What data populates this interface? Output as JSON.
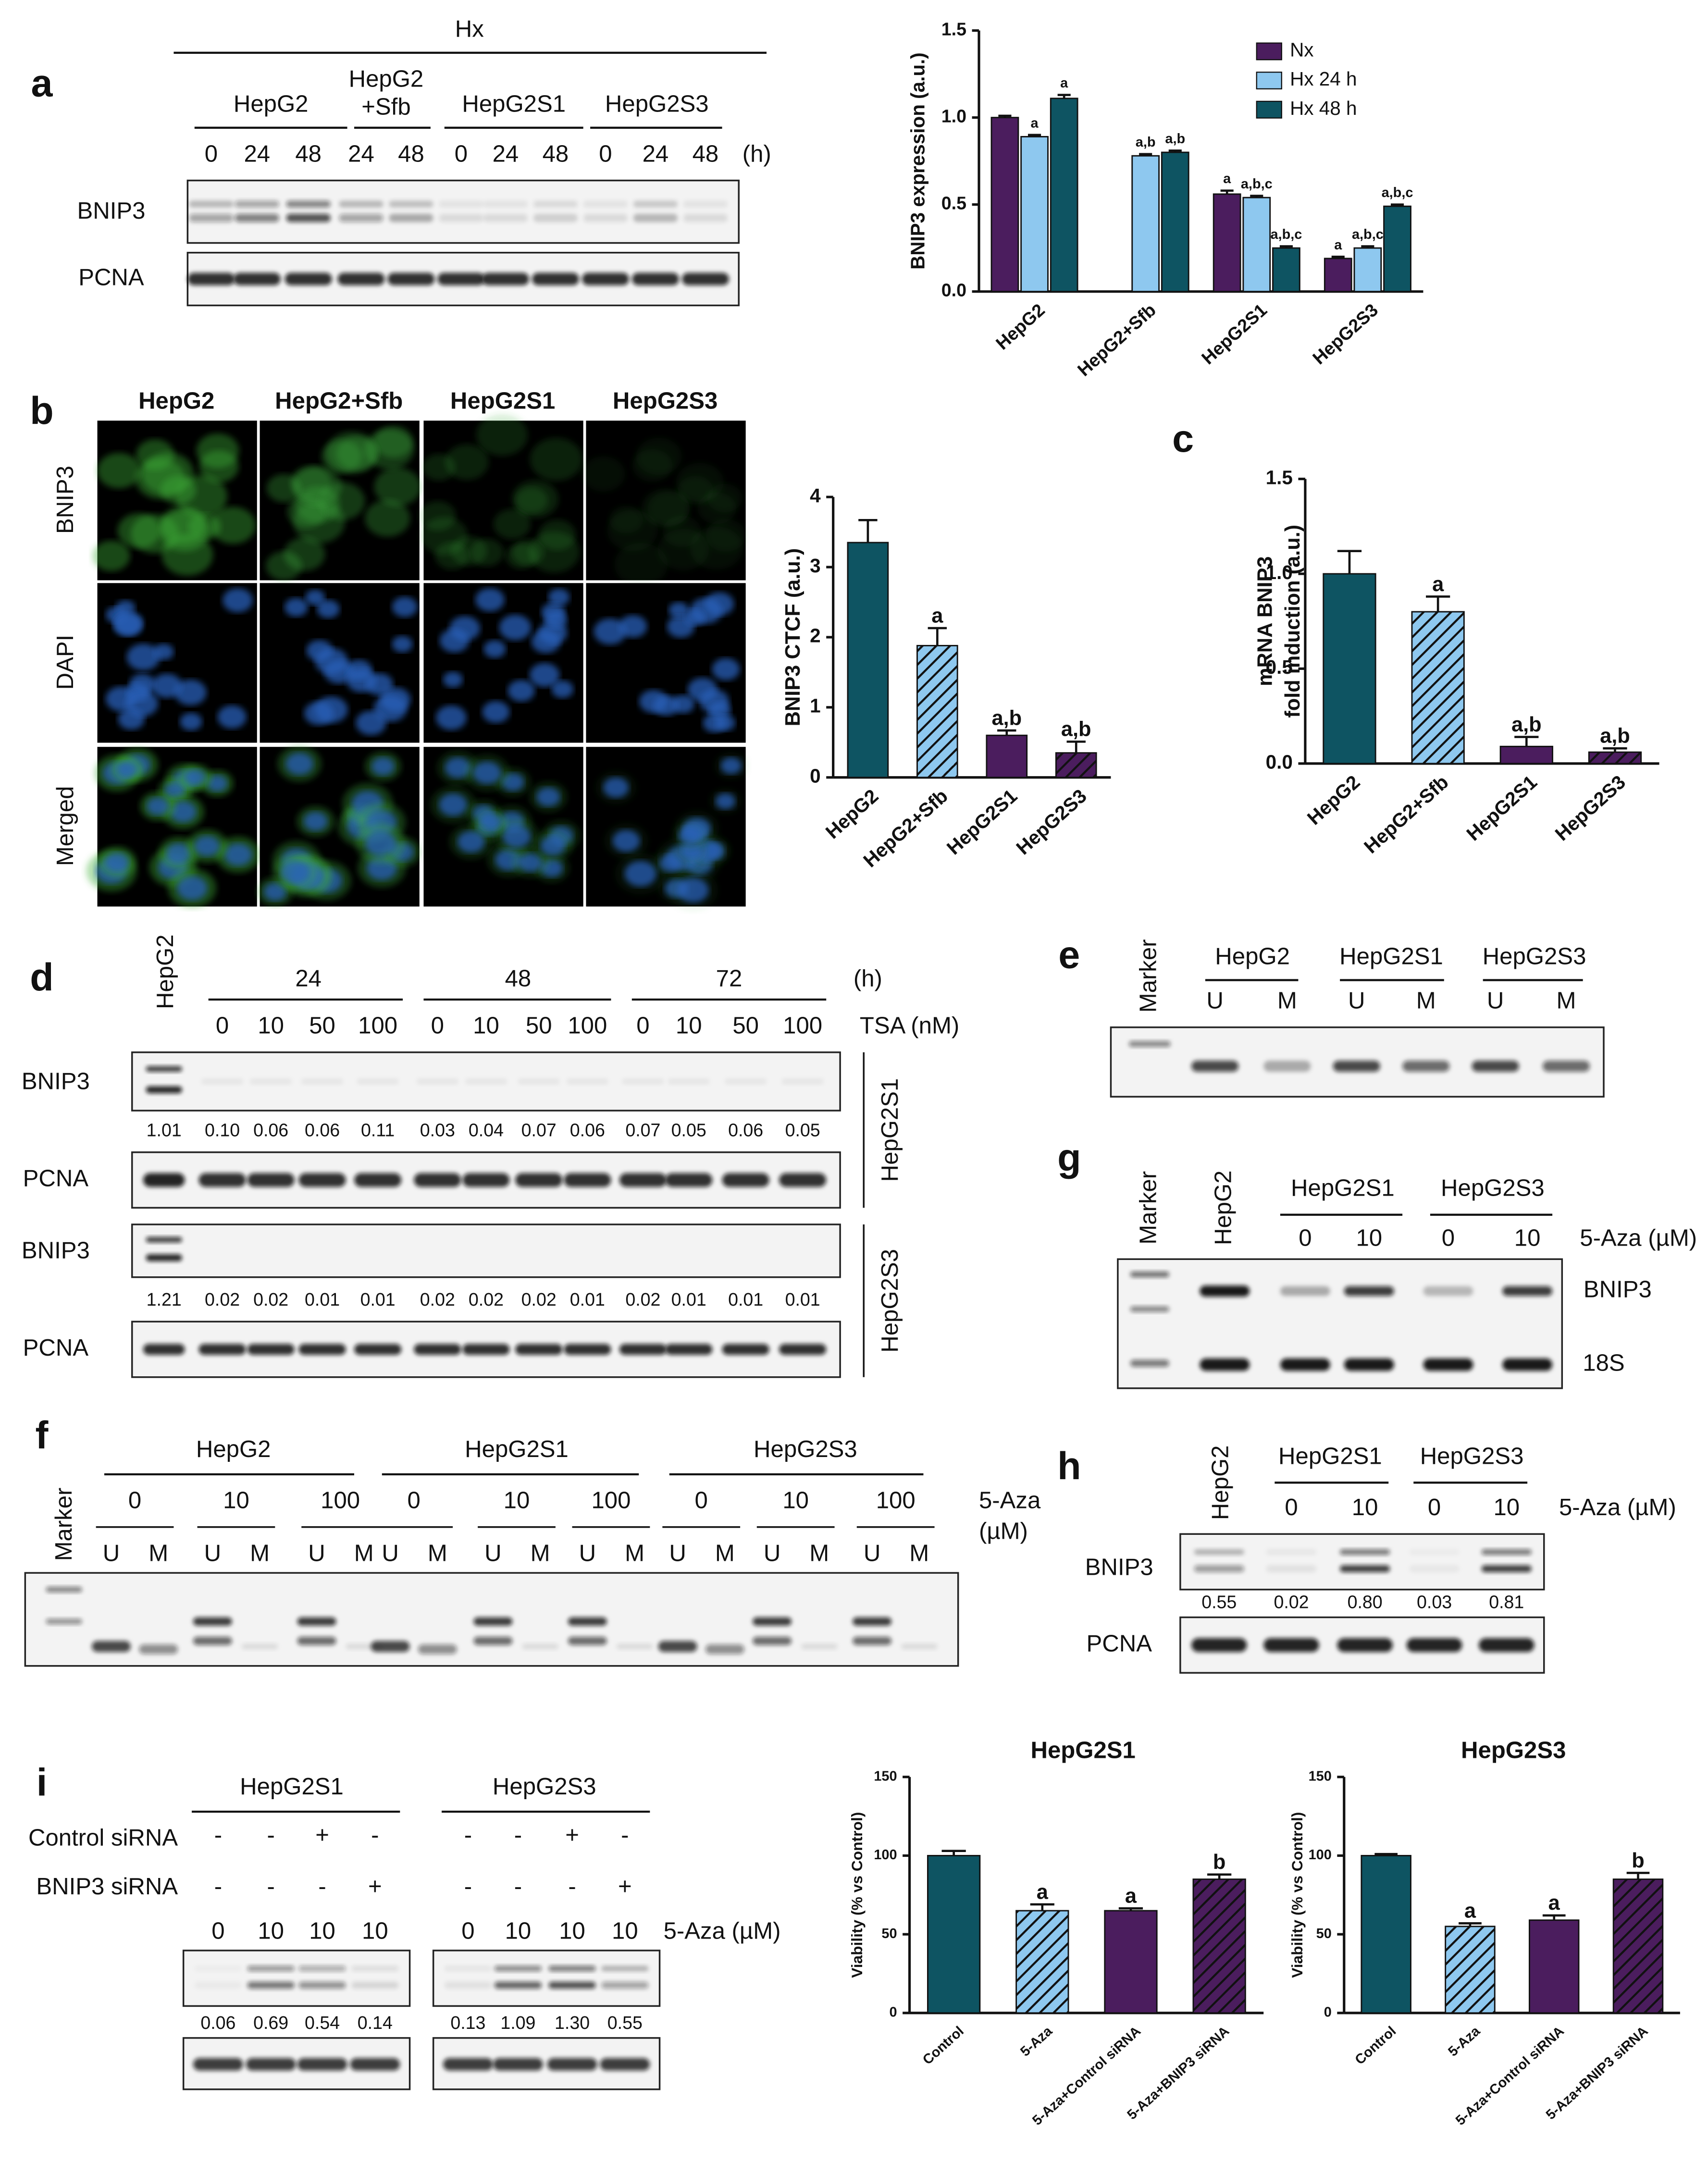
{
  "panel_labels": [
    "a",
    "b",
    "c",
    "d",
    "e",
    "f",
    "g",
    "h",
    "i"
  ],
  "blot_a": {
    "header": "Hx",
    "groups": [
      [
        "HepG2"
      ],
      [
        "HepG2",
        "+Sfb"
      ],
      [
        "HepG2S1"
      ],
      [
        "HepG2S3"
      ]
    ],
    "lanes": [
      "0",
      "24",
      "48",
      "24",
      "48",
      "0",
      "24",
      "48",
      "0",
      "24",
      "48"
    ],
    "unit": "(h)",
    "rows": [
      "BNIP3",
      "PCNA"
    ]
  },
  "images_b": {
    "columns": [
      "HepG2",
      "HepG2+Sfb",
      "HepG2S1",
      "HepG2S3"
    ],
    "rows": [
      "BNIP3",
      "DAPI",
      "Merged"
    ]
  },
  "blot_d": {
    "reference": "HepG2",
    "groups": [
      "24",
      "48",
      "72"
    ],
    "unit": "(h)",
    "lanes": [
      "0",
      "10",
      "50",
      "100",
      "0",
      "10",
      "50",
      "100",
      "0",
      "10",
      "50",
      "100"
    ],
    "treatment": "TSA (nM)",
    "rows": [
      "BNIP3",
      "PCNA",
      "BNIP3",
      "PCNA"
    ],
    "cell_lines": [
      "HepG2S1",
      "HepG2S3"
    ],
    "densities": [
      [
        "1.01",
        "0.10",
        "0.06",
        "0.06",
        "0.11",
        "0.03",
        "0.04",
        "0.07",
        "0.06",
        "0.07",
        "0.05",
        "0.06",
        "0.05"
      ],
      [
        "1.21",
        "0.02",
        "0.02",
        "0.01",
        "0.01",
        "0.02",
        "0.02",
        "0.02",
        "0.01",
        "0.02",
        "0.01",
        "0.01",
        "0.01"
      ]
    ]
  },
  "gel_e": {
    "marker": "Marker",
    "groups": [
      "HepG2",
      "HepG2S1",
      "HepG2S3"
    ],
    "lanes": [
      "U",
      "M",
      "U",
      "M",
      "U",
      "M"
    ]
  },
  "gel_f": {
    "marker": "Marker",
    "groups": [
      "HepG2",
      "HepG2S1",
      "HepG2S3"
    ],
    "doses": [
      "0",
      "10",
      "100",
      "0",
      "10",
      "100",
      "0",
      "10",
      "100"
    ],
    "treatment": "5-Aza",
    "unit": "(µM)",
    "lanes": [
      "U",
      "M",
      "U",
      "M",
      "U",
      "M",
      "U",
      "M",
      "U",
      "M",
      "U",
      "M",
      "U",
      "M",
      "U",
      "M",
      "U",
      "M"
    ]
  },
  "gel_g": {
    "marker": "Marker",
    "reference": "HepG2",
    "groups": [
      "HepG2S1",
      "HepG2S3"
    ],
    "doses": [
      "0",
      "10",
      "0",
      "10"
    ],
    "treatment": "5-Aza (µM)",
    "bands": [
      "BNIP3",
      "18S"
    ]
  },
  "blot_h": {
    "reference": "HepG2",
    "groups": [
      "HepG2S1",
      "HepG2S3"
    ],
    "doses": [
      "0",
      "10",
      "0",
      "10"
    ],
    "treatment": "5-Aza (µM)",
    "rows": [
      "BNIP3",
      "PCNA"
    ],
    "densities": [
      "0.55",
      "0.02",
      "0.80",
      "0.03",
      "0.81"
    ]
  },
  "blot_i": {
    "groups": [
      "HepG2S1",
      "HepG2S3"
    ],
    "conditions": [
      "Control siRNA",
      "BNIP3 siRNA"
    ],
    "control_sirna": [
      "-",
      "-",
      "+",
      "-",
      "-",
      "-",
      "+",
      "-"
    ],
    "bnip3_sirna": [
      "-",
      "-",
      "-",
      "+",
      "-",
      "-",
      "-",
      "+"
    ],
    "doses": [
      "0",
      "10",
      "10",
      "10",
      "0",
      "10",
      "10",
      "10"
    ],
    "treatment": "5-Aza (µM)",
    "densities": [
      "0.06",
      "0.69",
      "0.54",
      "0.14",
      "0.13",
      "1.09",
      "1.30",
      "0.55"
    ]
  },
  "chart_data": [
    {
      "type": "bar",
      "ylabel": "BNIP3 expression (a.u.)",
      "categories": [
        "HepG2",
        "HepG2+Sfb",
        "HepG2S1",
        "HepG2S3"
      ],
      "series": [
        {
          "name": "Nx",
          "color": "#4b1d5e",
          "values": [
            1.0,
            null,
            0.56,
            0.19
          ],
          "errors": [
            0.01,
            null,
            0.02,
            0.01
          ],
          "annotations": [
            null,
            null,
            "a",
            "a"
          ]
        },
        {
          "name": "Hx 24 h",
          "color": "#8ec8ef",
          "values": [
            0.89,
            0.78,
            0.54,
            0.25
          ],
          "errors": [
            0.01,
            0.01,
            0.01,
            0.01
          ],
          "annotations": [
            "a",
            "a,b",
            "a,b,c",
            "a,b,c"
          ]
        },
        {
          "name": "Hx 48 h",
          "color": "#0e5462",
          "values": [
            1.11,
            0.8,
            0.25,
            0.49
          ],
          "errors": [
            0.02,
            0.01,
            0.01,
            0.01
          ],
          "annotations": [
            "a",
            "a,b",
            "a,b,c",
            "a,b,c"
          ]
        }
      ],
      "ylim": [
        0,
        1.5
      ],
      "yticks": [
        {
          "value": 0,
          "label": "0.0"
        },
        0.5,
        {
          "value": 1,
          "label": "1.0"
        },
        1.5
      ],
      "legend": "upper right"
    },
    {
      "type": "bar",
      "ylabel": "BNIP3 CTCF (a.u.)",
      "categories": [
        "HepG2",
        "HepG2+Sfb",
        "HepG2S1",
        "HepG2S3"
      ],
      "values": [
        3.35,
        1.88,
        0.6,
        0.35
      ],
      "errors": [
        0.32,
        0.25,
        0.07,
        0.16
      ],
      "annotations": [
        null,
        "a",
        "a,b",
        "a,b"
      ],
      "colors": [
        "#0e5462",
        "#8ec8ef",
        "#4b1d5e",
        "#4b1d5e"
      ],
      "hatched": [
        false,
        true,
        false,
        true
      ],
      "ylim": [
        0,
        4
      ],
      "yticks": [
        0,
        1,
        2,
        3,
        4
      ]
    },
    {
      "type": "bar",
      "ylabel": [
        "mRNA BNIP3",
        "fold induction (a.u.)"
      ],
      "categories": [
        "HepG2",
        "HepG2+Sfb",
        "HepG2S1",
        "HepG2S3"
      ],
      "values": [
        1.0,
        0.8,
        0.09,
        0.06
      ],
      "errors": [
        0.12,
        0.08,
        0.05,
        0.02
      ],
      "annotations": [
        null,
        "a",
        "a,b",
        "a,b"
      ],
      "colors": [
        "#0e5462",
        "#8ec8ef",
        "#4b1d5e",
        "#4b1d5e"
      ],
      "hatched": [
        false,
        true,
        false,
        true
      ],
      "ylim": [
        0,
        1.5
      ],
      "yticks": [
        {
          "value": 0,
          "label": "0.0"
        },
        0.5,
        {
          "value": 1,
          "label": "1.0"
        },
        1.5
      ]
    },
    {
      "type": "bar",
      "title": "HepG2S1",
      "ylabel": "Viability (% vs Control)",
      "categories": [
        "Control",
        "5-Aza",
        "5-Aza+Control siRNA",
        "5-Aza+BNIP3 siRNA"
      ],
      "values": [
        100,
        65,
        65,
        85
      ],
      "errors": [
        3,
        4,
        1.5,
        3
      ],
      "annotations": [
        null,
        "a",
        "a",
        "b"
      ],
      "colors": [
        "#0e5462",
        "#8ec8ef",
        "#4b1d5e",
        "#4b1d5e"
      ],
      "hatched": [
        false,
        true,
        false,
        true
      ],
      "ylim": [
        0,
        150
      ],
      "yticks": [
        0,
        50,
        100,
        150
      ]
    },
    {
      "type": "bar",
      "title": "HepG2S3",
      "ylabel": "Viability (% vs Control)",
      "categories": [
        "Control",
        "5-Aza",
        "5-Aza+Control siRNA",
        "5-Aza+BNIP3 siRNA"
      ],
      "values": [
        100,
        55,
        59,
        85
      ],
      "errors": [
        1,
        2,
        3,
        4
      ],
      "annotations": [
        null,
        "a",
        "a",
        "b"
      ],
      "colors": [
        "#0e5462",
        "#8ec8ef",
        "#4b1d5e",
        "#4b1d5e"
      ],
      "hatched": [
        false,
        true,
        false,
        true
      ],
      "ylim": [
        0,
        150
      ],
      "yticks": [
        0,
        50,
        100,
        150
      ]
    }
  ]
}
